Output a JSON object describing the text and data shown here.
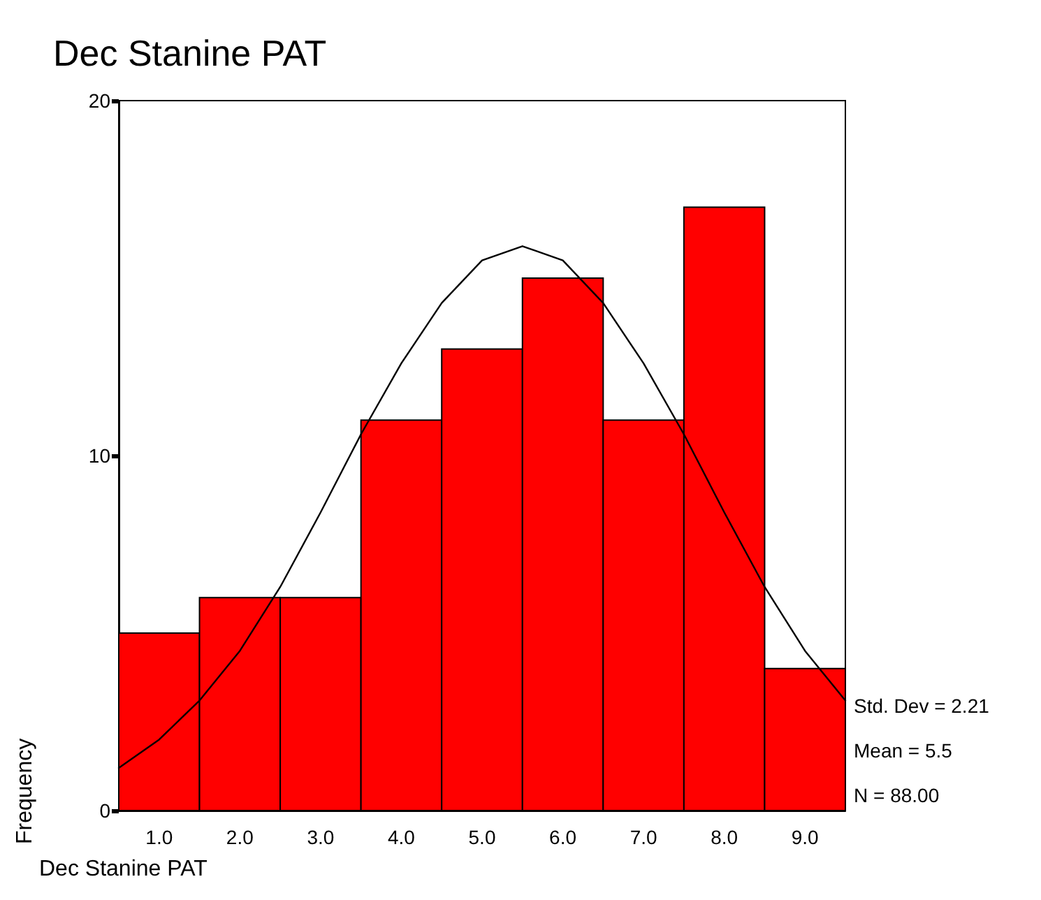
{
  "chart_data": {
    "type": "histogram",
    "title": "Dec Stanine PAT",
    "xlabel": "Dec Stanine PAT",
    "ylabel": "Frequency",
    "bins": [
      0.5,
      1.5,
      2.5,
      3.5,
      4.5,
      5.5,
      6.5,
      7.5,
      8.5,
      9.5
    ],
    "values": [
      5,
      6,
      6,
      11,
      13,
      15,
      11,
      17,
      4
    ],
    "color": "#ff0000",
    "series": [
      {
        "type": "line",
        "color": "#000000",
        "x": [
          0.5,
          1,
          1.5,
          2,
          2.5,
          3,
          3.5,
          4,
          4.5,
          5,
          5.5,
          6,
          6.5,
          7,
          7.5,
          8,
          8.5,
          9,
          9.5
        ],
        "values": [
          1.2,
          2.0,
          3.1,
          4.5,
          6.3,
          8.4,
          10.6,
          12.6,
          14.3,
          15.5,
          15.9,
          15.5,
          14.3,
          12.6,
          10.6,
          8.4,
          6.3,
          4.5,
          3.1
        ]
      }
    ],
    "xlim": [
      0.5,
      9.5
    ],
    "xticks": [
      {
        "value": 1,
        "label": "1.0"
      },
      {
        "value": 2,
        "label": "2.0"
      },
      {
        "value": 3,
        "label": "3.0"
      },
      {
        "value": 4,
        "label": "4.0"
      },
      {
        "value": 5,
        "label": "5.0"
      },
      {
        "value": 6,
        "label": "6.0"
      },
      {
        "value": 7,
        "label": "7.0"
      },
      {
        "value": 8,
        "label": "8.0"
      },
      {
        "value": 9,
        "label": "9.0"
      }
    ],
    "ylim": [
      0,
      20
    ],
    "yticks": [
      0,
      10,
      20
    ],
    "marker": "none",
    "line_style": "solid",
    "grid": false,
    "legend": false,
    "annotations": [
      "Std. Dev = 2.21",
      "Mean = 5.5",
      "N = 88.00"
    ]
  }
}
